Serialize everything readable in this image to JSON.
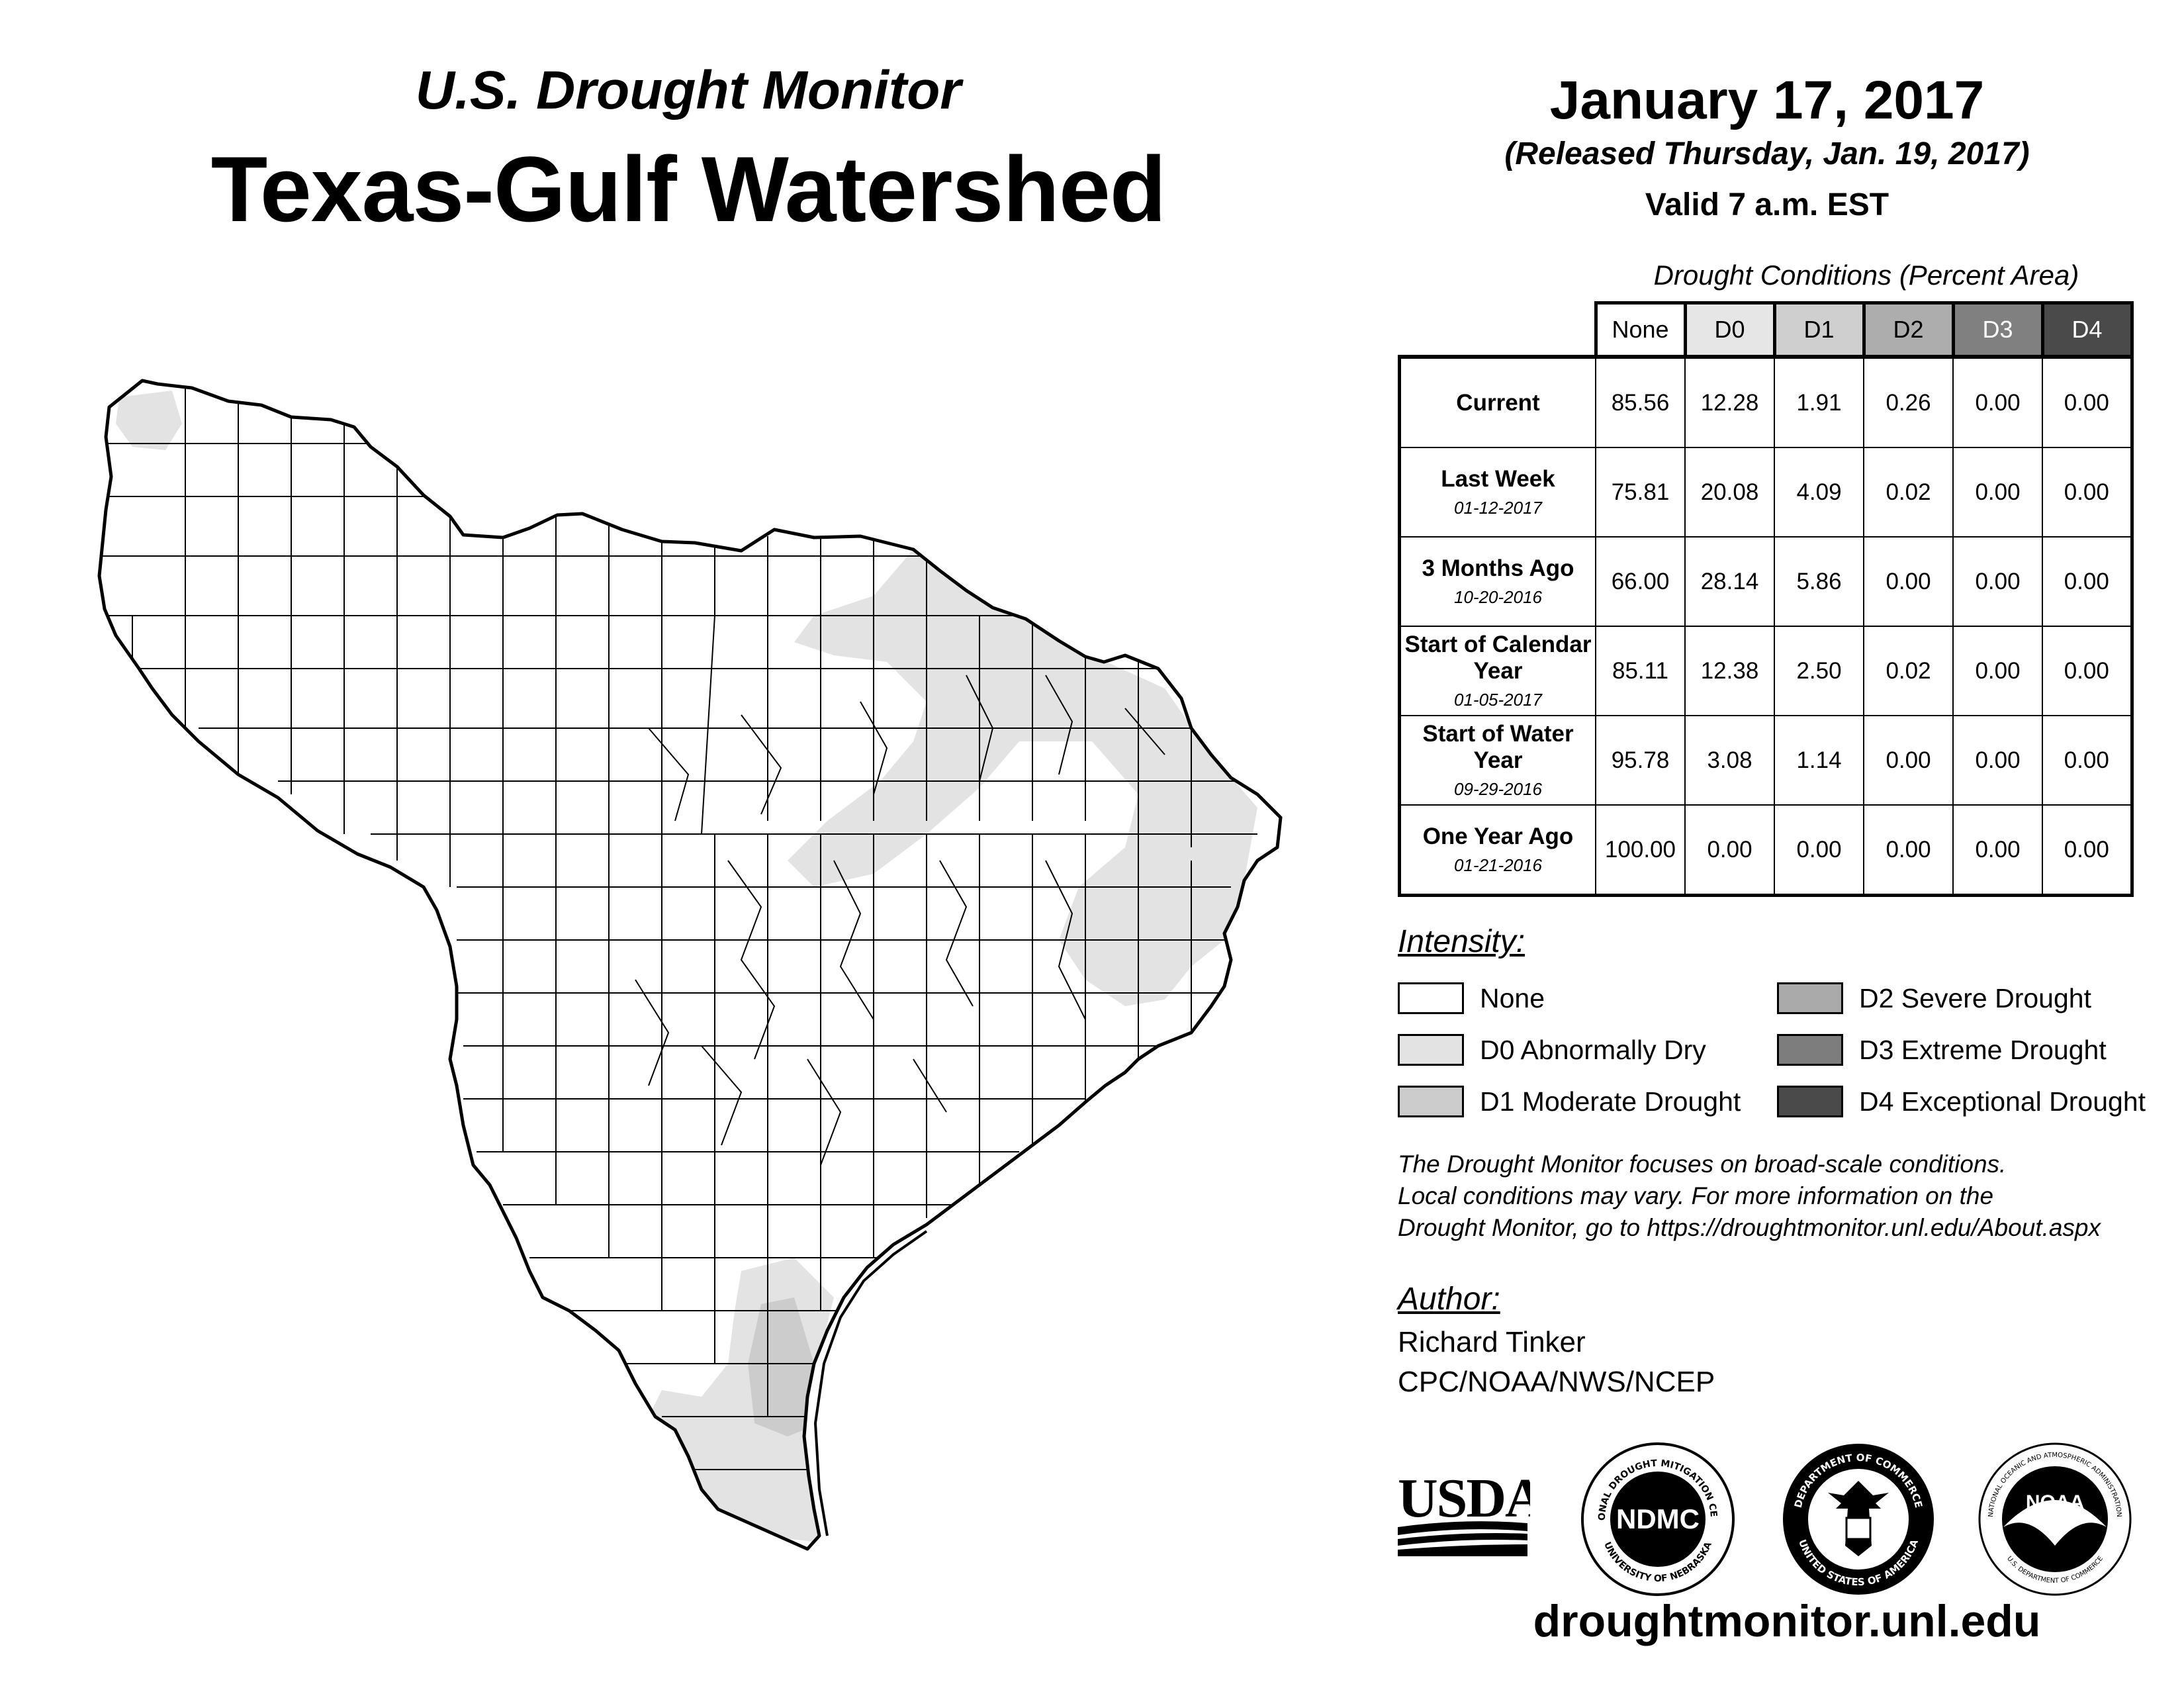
{
  "header": {
    "subtitle": "U.S. Drought Monitor",
    "title": "Texas-Gulf Watershed"
  },
  "date_block": {
    "date": "January 17, 2017",
    "released": "(Released Thursday, Jan. 19, 2017)",
    "valid": "Valid 7 a.m. EST"
  },
  "table": {
    "caption": "Drought Conditions (Percent Area)",
    "columns": [
      "None",
      "D0",
      "D1",
      "D2",
      "D3",
      "D4"
    ],
    "column_colors": [
      "#ffffff",
      "#e6e6e6",
      "#cfcfcf",
      "#adadad",
      "#808080",
      "#4a4a4a"
    ],
    "rows": [
      {
        "label": "Current",
        "date": "",
        "values": [
          "85.56",
          "12.28",
          "1.91",
          "0.26",
          "0.00",
          "0.00"
        ]
      },
      {
        "label": "Last Week",
        "date": "01-12-2017",
        "values": [
          "75.81",
          "20.08",
          "4.09",
          "0.02",
          "0.00",
          "0.00"
        ]
      },
      {
        "label": "3 Months Ago",
        "date": "10-20-2016",
        "values": [
          "66.00",
          "28.14",
          "5.86",
          "0.00",
          "0.00",
          "0.00"
        ]
      },
      {
        "label": "Start of Calendar Year",
        "date": "01-05-2017",
        "values": [
          "85.11",
          "12.38",
          "2.50",
          "0.02",
          "0.00",
          "0.00"
        ]
      },
      {
        "label": "Start of Water Year",
        "date": "09-29-2016",
        "values": [
          "95.78",
          "3.08",
          "1.14",
          "0.00",
          "0.00",
          "0.00"
        ]
      },
      {
        "label": "One Year Ago",
        "date": "01-21-2016",
        "values": [
          "100.00",
          "0.00",
          "0.00",
          "0.00",
          "0.00",
          "0.00"
        ]
      }
    ]
  },
  "legend": {
    "heading": "Intensity:",
    "items": [
      {
        "label": "None",
        "color": "#ffffff"
      },
      {
        "label": "D0 Abnormally Dry",
        "color": "#e3e3e3"
      },
      {
        "label": "D1 Moderate Drought",
        "color": "#cccccc"
      },
      {
        "label": "D2 Severe Drought",
        "color": "#aaaaaa"
      },
      {
        "label": "D3 Extreme Drought",
        "color": "#7d7d7d"
      },
      {
        "label": "D4 Exceptional Drought",
        "color": "#4a4a4a"
      }
    ]
  },
  "disclaimer": [
    "The Drought Monitor focuses on broad-scale conditions.",
    "Local conditions may vary. For more information on the",
    "Drought Monitor, go to https://droughtmonitor.unl.edu/About.aspx"
  ],
  "author": {
    "heading": "Author:",
    "name": "Richard Tinker",
    "org": "CPC/NOAA/NWS/NCEP"
  },
  "logos": {
    "usda": "USDA",
    "ndmc": "NDMC",
    "ndmc_ring_top": "NATIONAL DROUGHT MITIGATION CENTER",
    "ndmc_ring_bottom": "UNIVERSITY OF NEBRASKA",
    "commerce_ring_top": "DEPARTMENT OF COMMERCE",
    "commerce_ring_bottom": "UNITED STATES OF AMERICA",
    "noaa": "NOAA",
    "noaa_ring_top": "NATIONAL OCEANIC AND ATMOSPHERIC ADMINISTRATION",
    "noaa_ring_bottom": "U.S. DEPARTMENT OF COMMERCE"
  },
  "website": "droughtmonitor.unl.edu"
}
